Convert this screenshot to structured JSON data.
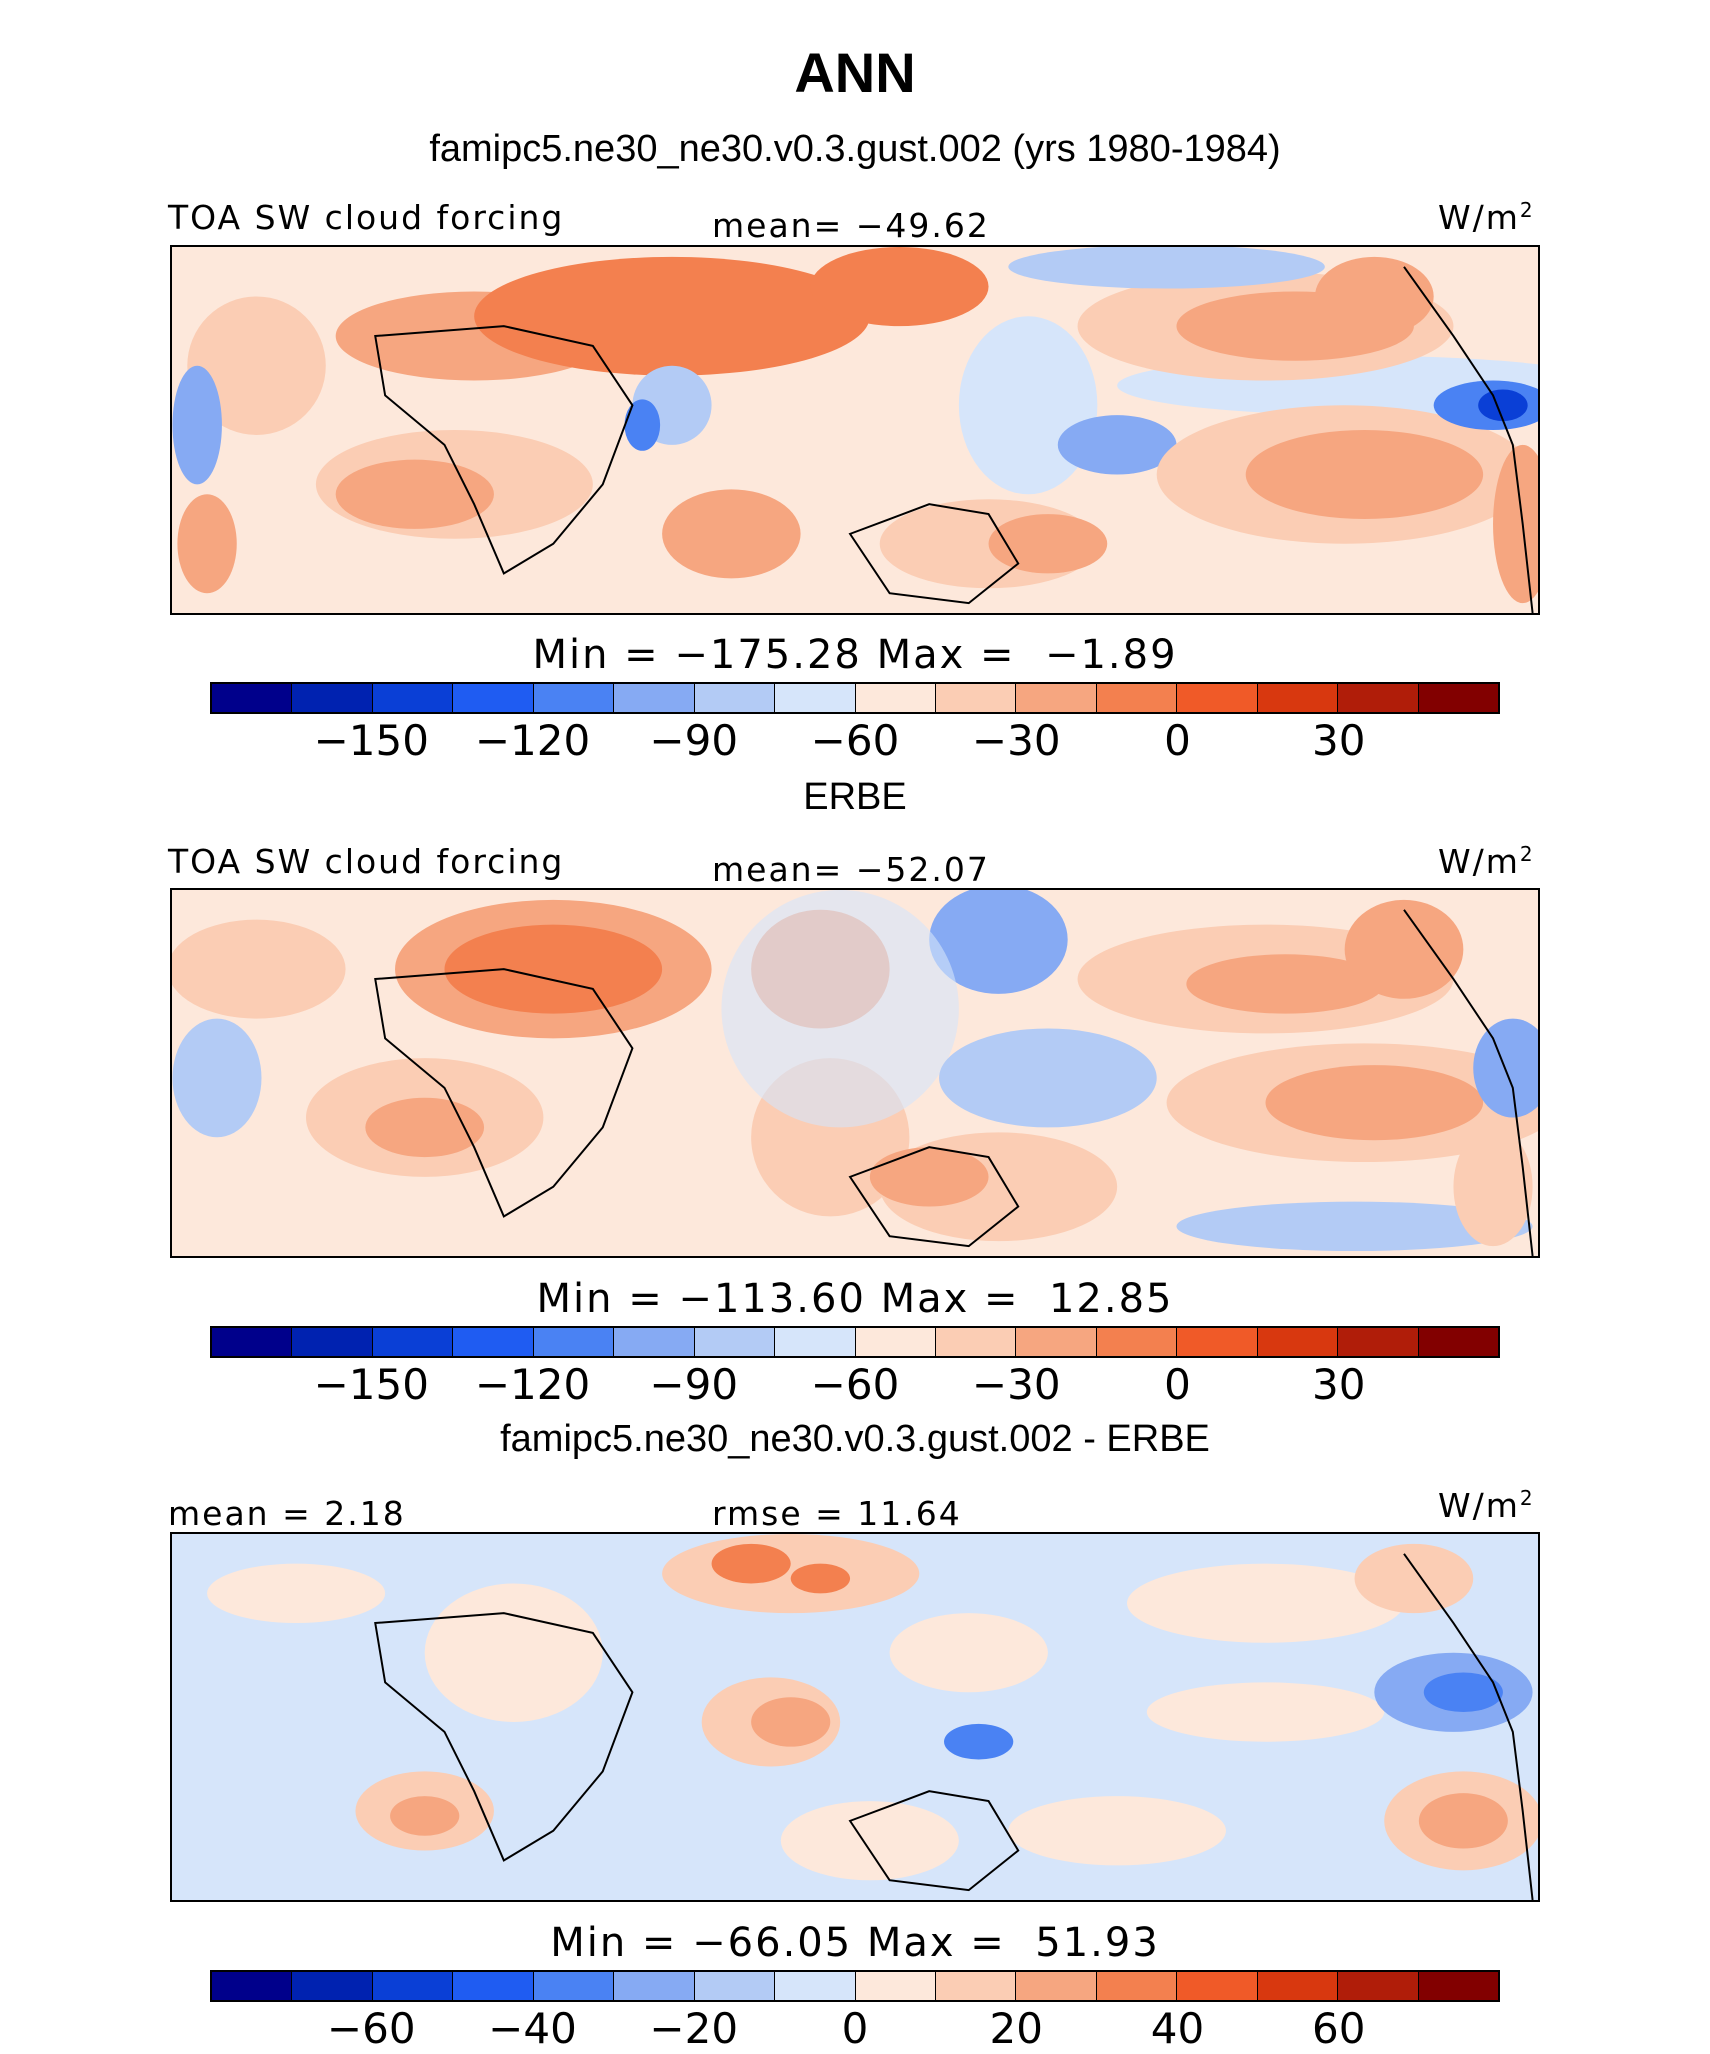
{
  "figure": {
    "title": "ANN"
  },
  "colors": {
    "colorbar": [
      "#00008b",
      "#0022b0",
      "#0a3fd6",
      "#1f5cf2",
      "#4a82f3",
      "#86aaf3",
      "#b3cbf5",
      "#d6e5fa",
      "#fde8db",
      "#fbcdb4",
      "#f6a680",
      "#f3804f",
      "#f05a28",
      "#d8380f",
      "#b01d09",
      "#820000"
    ]
  },
  "panels": [
    {
      "title": "famipc5.ne30_ne30.v0.3.gust.002 (yrs 1980-1984)",
      "left_label": "TOA SW cloud forcing",
      "center_label": "mean= −49.62",
      "units": "W/m",
      "units_sup": "2",
      "minmax": "Min = −175.28 Max =  −1.89",
      "tick_labels": [
        "−150",
        "−120",
        "−90",
        "−60",
        "−30",
        "0",
        "30"
      ]
    },
    {
      "title": "ERBE",
      "left_label": "TOA SW cloud forcing",
      "center_label": "mean= −52.07",
      "units": "W/m",
      "units_sup": "2",
      "minmax": "Min = −113.60 Max =  12.85",
      "tick_labels": [
        "−150",
        "−120",
        "−90",
        "−60",
        "−30",
        "0",
        "30"
      ]
    },
    {
      "title": "famipc5.ne30_ne30.v0.3.gust.002 - ERBE",
      "left_label": "mean =  2.18",
      "center_label": "rmse =  11.64",
      "units": "W/m",
      "units_sup": "2",
      "minmax": "Min = −66.05 Max =  51.93",
      "tick_labels": [
        "−60",
        "−40",
        "−20",
        "0",
        "20",
        "40",
        "60"
      ]
    }
  ]
}
